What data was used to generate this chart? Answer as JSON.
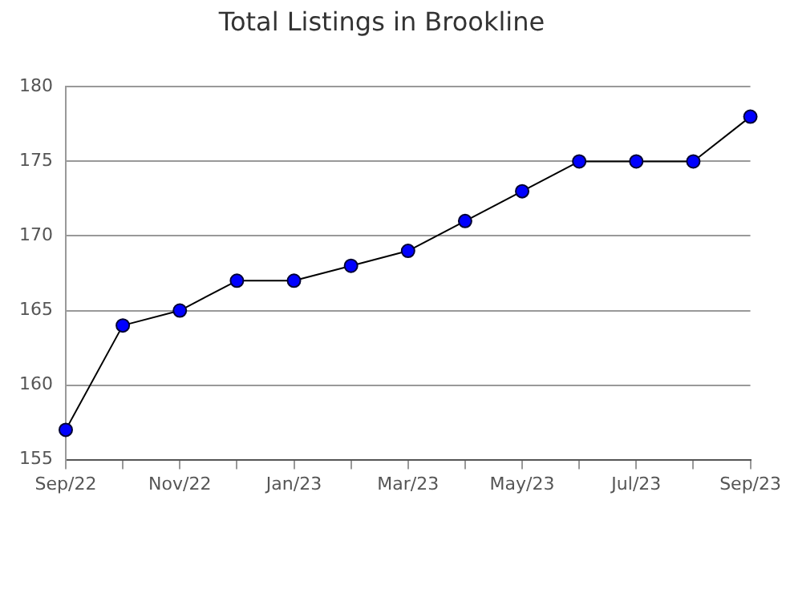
{
  "chart_data": {
    "type": "line",
    "title": "Total Listings in Brookline",
    "categories": [
      "Sep/22",
      null,
      "Nov/22",
      null,
      "Jan/23",
      null,
      "Mar/23",
      null,
      "May/23",
      null,
      "Jul/23",
      null,
      "Sep/23"
    ],
    "series": [
      {
        "color": "#0000ff",
        "values": [
          157,
          164,
          165,
          167,
          167,
          168,
          169,
          171,
          173,
          175,
          175,
          175,
          178
        ]
      }
    ],
    "ylim": [
      155,
      180
    ],
    "yticks": [
      155,
      160,
      165,
      170,
      175,
      180
    ],
    "grid": "y",
    "legend": false,
    "marker": "circle",
    "line_style": "solid"
  }
}
